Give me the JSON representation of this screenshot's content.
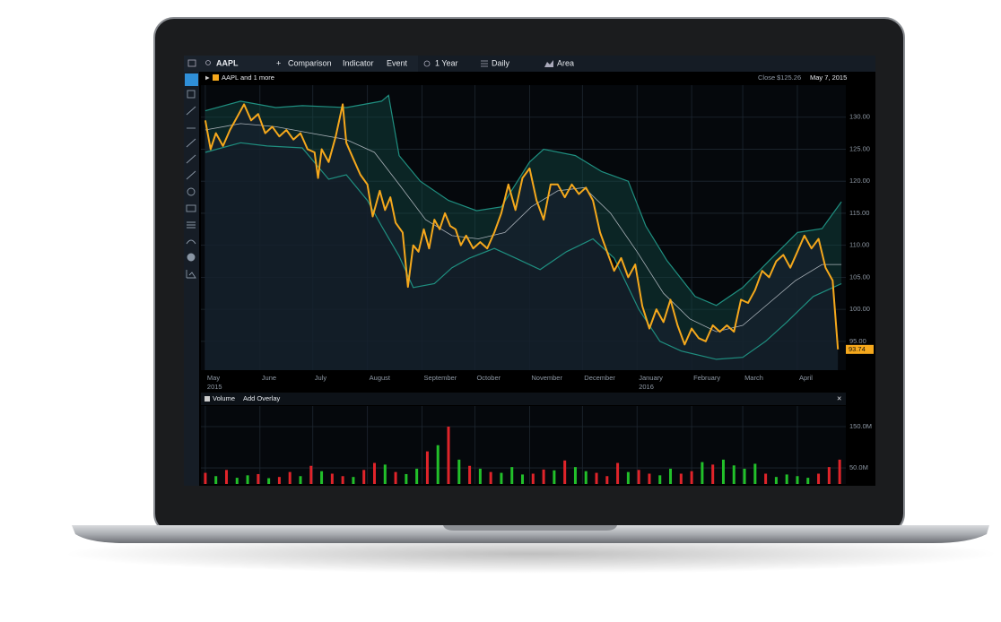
{
  "toolbar": {
    "symbol": "AAPL",
    "comparison": "Comparison",
    "indicator": "Indicator",
    "event": "Event",
    "range": "1 Year",
    "interval": "Daily",
    "chart_style": "Area"
  },
  "volume_panel": {
    "add_overlay": "Add Overlay",
    "close": "×"
  },
  "chart_data": [
    {
      "type": "line",
      "legend_label": "AAPL and 1 more",
      "close_label": "Close",
      "close_value": "$125.26",
      "date_label": "May 7, 2015",
      "xlim": [
        -2.5,
        363.5
      ],
      "ylim": [
        90.5,
        135
      ],
      "xticks": [
        {
          "value": 0,
          "label": "May"
        },
        {
          "value": 31,
          "label": "June"
        },
        {
          "value": 61,
          "label": "July"
        },
        {
          "value": 92,
          "label": "August"
        },
        {
          "value": 123,
          "label": "September"
        },
        {
          "value": 153,
          "label": "October"
        },
        {
          "value": 184,
          "label": "November"
        },
        {
          "value": 214,
          "label": "December"
        },
        {
          "value": 245,
          "label": "January"
        },
        {
          "value": 276,
          "label": "February"
        },
        {
          "value": 305,
          "label": "March"
        },
        {
          "value": 336,
          "label": "April"
        }
      ],
      "year_labels": [
        {
          "value": 0,
          "label": "2015"
        },
        {
          "value": 245,
          "label": "2016"
        }
      ],
      "yticks": [
        {
          "value": 95,
          "label": "95.00"
        },
        {
          "value": 100,
          "label": "100.00"
        },
        {
          "value": 105,
          "label": "105.00"
        },
        {
          "value": 110,
          "label": "110.00"
        },
        {
          "value": 115,
          "label": "115.00"
        },
        {
          "value": 120,
          "label": "120.00"
        },
        {
          "value": 125,
          "label": "125.00"
        },
        {
          "value": 130,
          "label": "130.00"
        }
      ],
      "grid": true,
      "area_fill": "#15212d",
      "band_fill": "#134a44",
      "series": [
        {
          "color": "#f5a81c",
          "x": [
            0,
            3,
            6,
            10,
            14,
            18,
            22,
            26,
            30,
            34,
            38,
            42,
            46,
            50,
            54,
            58,
            62,
            64,
            66,
            70,
            74,
            78,
            80,
            84,
            88,
            92,
            95,
            99,
            102,
            105,
            108,
            112,
            115,
            118,
            121,
            124,
            127,
            130,
            133,
            136,
            139,
            142,
            145,
            148,
            152,
            156,
            160,
            164,
            168,
            172,
            176,
            180,
            184,
            188,
            192,
            196,
            200,
            204,
            208,
            212,
            216,
            220,
            224,
            228,
            232,
            236,
            240,
            244,
            248,
            252,
            256,
            260,
            264,
            268,
            272,
            276,
            280,
            284,
            288,
            292,
            296,
            300,
            304,
            308,
            312,
            316,
            320,
            324,
            328,
            332,
            336,
            340,
            344,
            348,
            352,
            356,
            359
          ],
          "values": [
            129.5,
            125,
            127.5,
            125.5,
            128,
            130,
            132,
            129.5,
            130.5,
            127.5,
            128.5,
            127,
            128,
            126.5,
            127.5,
            125,
            124.5,
            120.5,
            125,
            123,
            127,
            132,
            126,
            123.5,
            121,
            119.5,
            114.5,
            118.5,
            115.5,
            117.5,
            113.5,
            112,
            103.5,
            110,
            109,
            112.5,
            109.5,
            114,
            112.5,
            115,
            113,
            112.5,
            110,
            111.5,
            109.5,
            110.5,
            109.5,
            112,
            115,
            119.5,
            115.5,
            120.5,
            122,
            117,
            114,
            119.5,
            119.5,
            117.5,
            119.5,
            118,
            119,
            117,
            112,
            109,
            106,
            108,
            105,
            107,
            100.5,
            97,
            100,
            98,
            101.5,
            97.5,
            94.5,
            97,
            95.5,
            95,
            97.5,
            96.5,
            97.5,
            96.5,
            101.5,
            101,
            103,
            106,
            105,
            107.5,
            108.5,
            106.5,
            109,
            111.5,
            109.5,
            111,
            106.5,
            104.5,
            93.74
          ]
        },
        {
          "color": "#1f8f80",
          "x": [
            0,
            20,
            40,
            55,
            80,
            100,
            104,
            110,
            122,
            138,
            154,
            168,
            184,
            192,
            210,
            225,
            240,
            250,
            262,
            278,
            290,
            305,
            320,
            336,
            350,
            361
          ],
          "values": [
            131,
            132.5,
            131.5,
            131.8,
            131.5,
            132.5,
            133.4,
            124,
            120,
            117,
            115.4,
            116,
            123,
            125,
            124,
            121.5,
            120,
            113,
            107.6,
            102,
            100.6,
            103.4,
            107.6,
            112,
            112.6,
            116.8
          ]
        },
        {
          "color": "#a9b1b8",
          "x": [
            0,
            20,
            40,
            60,
            80,
            96,
            110,
            125,
            140,
            155,
            170,
            185,
            200,
            215,
            230,
            245,
            260,
            275,
            290,
            305,
            320,
            335,
            350,
            361
          ],
          "values": [
            128,
            129,
            128.5,
            127.5,
            126.5,
            124.5,
            119.5,
            114,
            111.5,
            111,
            112,
            116,
            118.5,
            119,
            115,
            109,
            102.5,
            98.5,
            96.5,
            97.5,
            101,
            104.5,
            107,
            107
          ]
        },
        {
          "color": "#1f8f80",
          "x": [
            0,
            20,
            35,
            55,
            70,
            80,
            92,
            100,
            110,
            118,
            130,
            140,
            150,
            164,
            176,
            190,
            205,
            220,
            232,
            246,
            258,
            270,
            290,
            305,
            318,
            330,
            345,
            361
          ],
          "values": [
            124.5,
            126,
            125.5,
            125.2,
            120.3,
            121,
            117,
            113,
            108.3,
            103.4,
            104,
            106.5,
            108,
            109.5,
            108,
            106.2,
            109,
            111,
            108,
            100,
            95,
            93.5,
            92.2,
            92.5,
            95,
            98,
            102,
            104
          ]
        }
      ]
    },
    {
      "type": "bar",
      "title": "Volume",
      "xlim": [
        -2.5,
        363.5
      ],
      "ylim": [
        11000000,
        200000000
      ],
      "yticks": [
        {
          "value": 50000000,
          "label": "50.0M"
        },
        {
          "value": 150000000,
          "label": "150.0M"
        }
      ],
      "x": [
        0,
        6,
        12,
        18,
        24,
        30,
        36,
        42,
        48,
        54,
        60,
        66,
        72,
        78,
        84,
        90,
        96,
        102,
        108,
        114,
        120,
        126,
        132,
        138,
        144,
        150,
        156,
        162,
        168,
        174,
        180,
        186,
        192,
        198,
        204,
        210,
        216,
        222,
        228,
        234,
        240,
        246,
        252,
        258,
        264,
        270,
        276,
        282,
        288,
        294,
        300,
        306,
        312,
        318,
        324,
        330,
        336,
        342,
        348,
        354,
        360
      ],
      "values": [
        38000000,
        30000000,
        45000000,
        26000000,
        32000000,
        35000000,
        25000000,
        28000000,
        40000000,
        30000000,
        55000000,
        42000000,
        36000000,
        30000000,
        28000000,
        45000000,
        62000000,
        58000000,
        40000000,
        35000000,
        48000000,
        90000000,
        105000000,
        150000000,
        70000000,
        55000000,
        48000000,
        40000000,
        38000000,
        52000000,
        34000000,
        36000000,
        46000000,
        44000000,
        68000000,
        52000000,
        42000000,
        38000000,
        30000000,
        62000000,
        40000000,
        45000000,
        36000000,
        32000000,
        48000000,
        36000000,
        42000000,
        64000000,
        58000000,
        70000000,
        56000000,
        48000000,
        60000000,
        36000000,
        28000000,
        34000000,
        30000000,
        26000000,
        36000000,
        52000000,
        70000000
      ],
      "colors": [
        "#e0242a",
        "#22c02a",
        "#e0242a",
        "#22c02a",
        "#22c02a",
        "#e0242a",
        "#22c02a",
        "#e0242a",
        "#e0242a",
        "#22c02a",
        "#e0242a",
        "#22c02a",
        "#e0242a",
        "#e0242a",
        "#22c02a",
        "#e0242a",
        "#e0242a",
        "#22c02a",
        "#e0242a",
        "#22c02a",
        "#22c02a",
        "#e0242a",
        "#22c02a",
        "#e0242a",
        "#22c02a",
        "#e0242a",
        "#22c02a",
        "#e0242a",
        "#22c02a",
        "#22c02a",
        "#22c02a",
        "#e0242a",
        "#e0242a",
        "#22c02a",
        "#e0242a",
        "#22c02a",
        "#22c02a",
        "#e0242a",
        "#e0242a",
        "#e0242a",
        "#22c02a",
        "#e0242a",
        "#e0242a",
        "#22c02a",
        "#22c02a",
        "#e0242a",
        "#e0242a",
        "#22c02a",
        "#e0242a",
        "#22c02a",
        "#22c02a",
        "#22c02a",
        "#22c02a",
        "#e0242a",
        "#22c02a",
        "#22c02a",
        "#22c02a",
        "#22c02a",
        "#e0242a",
        "#e0242a",
        "#e0242a"
      ]
    }
  ]
}
